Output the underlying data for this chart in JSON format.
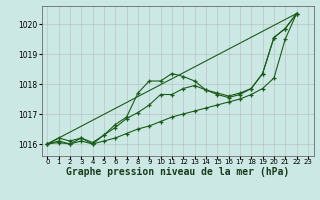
{
  "background_color": "#cce8e4",
  "plot_bg_color": "#cce8e4",
  "line_color": "#1a5c1a",
  "grid_color": "#b0b0b0",
  "xlabel": "Graphe pression niveau de la mer (hPa)",
  "xlabel_fontsize": 7,
  "xlim": [
    -0.5,
    23.5
  ],
  "ylim": [
    1015.6,
    1020.6
  ],
  "yticks": [
    1016,
    1017,
    1018,
    1019,
    1020
  ],
  "xticks": [
    0,
    1,
    2,
    3,
    4,
    5,
    6,
    7,
    8,
    9,
    10,
    11,
    12,
    13,
    14,
    15,
    16,
    17,
    18,
    19,
    20,
    21,
    22,
    23
  ],
  "series": [
    {
      "x": [
        0,
        1,
        2,
        3,
        4,
        5,
        6,
        7,
        8,
        9,
        10,
        11,
        12,
        13,
        14,
        15,
        16,
        17,
        18,
        19,
        20,
        21,
        22
      ],
      "y": [
        1016.0,
        1016.2,
        1016.1,
        1016.2,
        1016.05,
        1016.3,
        1016.65,
        1016.9,
        1017.7,
        1018.1,
        1018.1,
        1018.35,
        1018.25,
        1018.1,
        1017.8,
        1017.65,
        1017.55,
        1017.65,
        1017.85,
        1018.35,
        1019.55,
        1019.85,
        1020.35
      ]
    },
    {
      "x": [
        0,
        1,
        2,
        3,
        4,
        5,
        6,
        7,
        8,
        9,
        10,
        11,
        12,
        13,
        14,
        15,
        16,
        17,
        18,
        19,
        20,
        21,
        22
      ],
      "y": [
        1016.0,
        1016.1,
        1016.0,
        1016.2,
        1016.0,
        1016.3,
        1016.55,
        1016.85,
        1017.05,
        1017.3,
        1017.65,
        1017.65,
        1017.85,
        1017.95,
        1017.8,
        1017.7,
        1017.6,
        1017.7,
        1017.85,
        1018.35,
        1019.55,
        1019.85,
        1020.35
      ]
    },
    {
      "x": [
        0,
        1,
        2,
        3,
        4,
        5,
        6,
        7,
        8,
        9,
        10,
        11,
        12,
        13,
        14,
        15,
        16,
        17,
        18,
        19,
        20,
        21,
        22
      ],
      "y": [
        1016.0,
        1016.05,
        1016.0,
        1016.1,
        1016.0,
        1016.1,
        1016.2,
        1016.35,
        1016.5,
        1016.6,
        1016.75,
        1016.9,
        1017.0,
        1017.1,
        1017.2,
        1017.3,
        1017.4,
        1017.5,
        1017.65,
        1017.85,
        1018.2,
        1019.5,
        1020.35
      ]
    },
    {
      "x": [
        0,
        22
      ],
      "y": [
        1016.0,
        1020.35
      ]
    }
  ]
}
